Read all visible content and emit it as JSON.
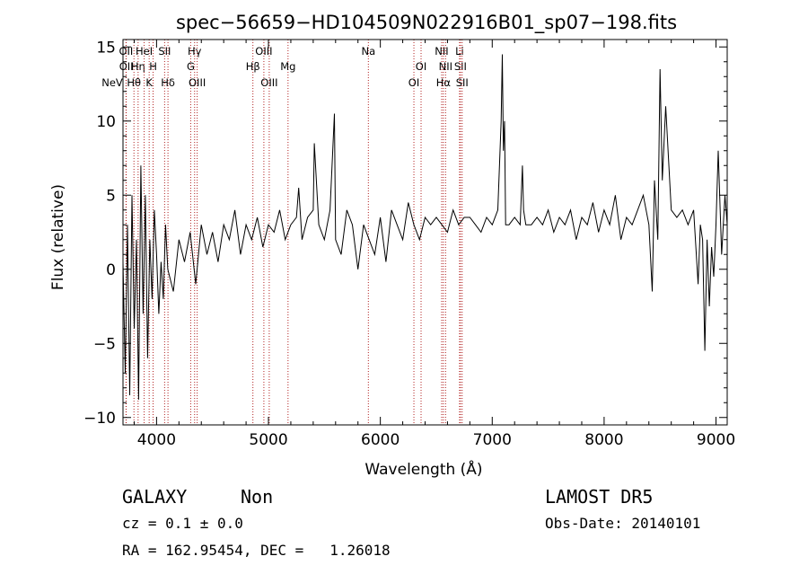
{
  "chart_data": {
    "type": "line",
    "title": "spec−56659−HD104509N022916B01_sp07−198.fits",
    "xlabel": "Wavelength (Å)",
    "ylabel": "Flux (relative)",
    "xlim": [
      3700,
      9100
    ],
    "ylim": [
      -10.5,
      15.5
    ],
    "xticks": [
      4000,
      5000,
      6000,
      7000,
      8000,
      9000
    ],
    "yticks": [
      -10,
      -5,
      0,
      5,
      10,
      15
    ],
    "grid": false,
    "series": [
      {
        "x": [
          3700,
          3720,
          3740,
          3760,
          3780,
          3800,
          3820,
          3840,
          3860,
          3880,
          3900,
          3920,
          3940,
          3960,
          3980,
          4000,
          4020,
          4040,
          4060,
          4080,
          4100,
          4150,
          4200,
          4250,
          4300,
          4350,
          4400,
          4450,
          4500,
          4550,
          4600,
          4650,
          4700,
          4750,
          4800,
          4850,
          4900,
          4950,
          5000,
          5050,
          5100,
          5150,
          5200,
          5250,
          5270,
          5300,
          5350,
          5400,
          5410,
          5450,
          5500,
          5550,
          5590,
          5600,
          5650,
          5700,
          5750,
          5800,
          5850,
          5900,
          5950,
          6000,
          6050,
          6100,
          6150,
          6200,
          6250,
          6300,
          6350,
          6400,
          6450,
          6500,
          6550,
          6600,
          6650,
          6700,
          6750,
          6800,
          6850,
          6900,
          6950,
          7000,
          7050,
          7080,
          7090,
          7100,
          7110,
          7120,
          7150,
          7200,
          7250,
          7270,
          7280,
          7300,
          7350,
          7400,
          7450,
          7500,
          7550,
          7600,
          7650,
          7700,
          7750,
          7800,
          7850,
          7900,
          7950,
          8000,
          8050,
          8100,
          8150,
          8200,
          8250,
          8300,
          8350,
          8400,
          8430,
          8450,
          8480,
          8500,
          8520,
          8550,
          8600,
          8650,
          8700,
          8750,
          8800,
          8820,
          8840,
          8860,
          8880,
          8900,
          8920,
          8940,
          8960,
          8980,
          9000,
          9020,
          9050,
          9080,
          9100
        ],
        "values": [
          0.5,
          -7,
          3,
          -8.5,
          5,
          -4,
          2,
          -8.8,
          7,
          -3,
          5,
          -6,
          2,
          -2,
          4,
          1,
          -3,
          0.5,
          -2,
          3,
          0,
          -1.5,
          2,
          0.5,
          2.5,
          -1,
          3,
          1,
          2.5,
          0.5,
          3,
          2,
          4,
          1,
          3,
          2,
          3.5,
          1.5,
          3,
          2.5,
          4,
          2,
          3,
          3.5,
          5.5,
          2,
          3.5,
          4,
          8.5,
          3,
          2,
          4,
          10.5,
          2,
          1,
          4,
          3,
          0,
          3,
          2,
          1,
          3.5,
          0.5,
          4,
          3,
          2,
          4.5,
          3,
          2,
          3.5,
          3,
          3.5,
          3,
          2.5,
          4,
          3,
          3.5,
          3.5,
          3,
          2.5,
          3.5,
          3,
          4,
          10,
          14.5,
          8,
          10,
          3,
          3,
          3.5,
          3,
          7,
          4,
          3,
          3,
          3.5,
          3,
          4,
          2.5,
          3.5,
          3,
          4,
          2,
          3.5,
          3,
          4.5,
          2.5,
          4,
          3,
          5,
          2,
          3.5,
          3,
          4,
          5,
          3,
          -1.5,
          6,
          2,
          13.5,
          6,
          11,
          4,
          3.5,
          4,
          3,
          4,
          1.5,
          -1,
          3,
          2,
          -5.5,
          2,
          -2.5,
          1.5,
          -0.5,
          3,
          8,
          1,
          5,
          3
        ]
      }
    ],
    "lines": [
      {
        "label": "NeV",
        "x": 3426,
        "row": 3
      },
      {
        "label": "OII",
        "x": 3727,
        "row": 1
      },
      {
        "label": "OII",
        "x": 3729,
        "row": 2
      },
      {
        "label": "Hθ",
        "x": 3798,
        "row": 3
      },
      {
        "label": "Hη",
        "x": 3835,
        "row": 2
      },
      {
        "label": "HeI",
        "x": 3889,
        "row": 1
      },
      {
        "label": "K",
        "x": 3934,
        "row": 3
      },
      {
        "label": "H",
        "x": 3969,
        "row": 2
      },
      {
        "label": "SII",
        "x": 4072,
        "row": 1
      },
      {
        "label": "Hδ",
        "x": 4102,
        "row": 3
      },
      {
        "label": "Hγ",
        "x": 4340,
        "row": 1
      },
      {
        "label": "G",
        "x": 4305,
        "row": 2
      },
      {
        "label": "OIII",
        "x": 4363,
        "row": 3
      },
      {
        "label": "Hβ",
        "x": 4861,
        "row": 2
      },
      {
        "label": "OIII",
        "x": 4959,
        "row": 1
      },
      {
        "label": "OIII",
        "x": 5007,
        "row": 3
      },
      {
        "label": "Mg",
        "x": 5175,
        "row": 2
      },
      {
        "label": "Na",
        "x": 5893,
        "row": 1
      },
      {
        "label": "OI",
        "x": 6300,
        "row": 3
      },
      {
        "label": "OI",
        "x": 6364,
        "row": 2
      },
      {
        "label": "NII",
        "x": 6548,
        "row": 1
      },
      {
        "label": "NII",
        "x": 6583,
        "row": 2
      },
      {
        "label": "Hα",
        "x": 6563,
        "row": 3
      },
      {
        "label": "Li",
        "x": 6708,
        "row": 1
      },
      {
        "label": "SII",
        "x": 6716,
        "row": 2
      },
      {
        "label": "SII",
        "x": 6731,
        "row": 3
      }
    ]
  },
  "info": {
    "classification": "GALAXY",
    "subclass": "Non",
    "survey": "LAMOST DR5",
    "cz": "cz = 0.1 ± 0.0",
    "obs_date": "Obs-Date: 20140101",
    "coords": "RA = 162.95454, DEC =   1.26018"
  },
  "colors": {
    "spectrum": "#000000",
    "line_marker": "#b22222",
    "axes": "#000000"
  }
}
